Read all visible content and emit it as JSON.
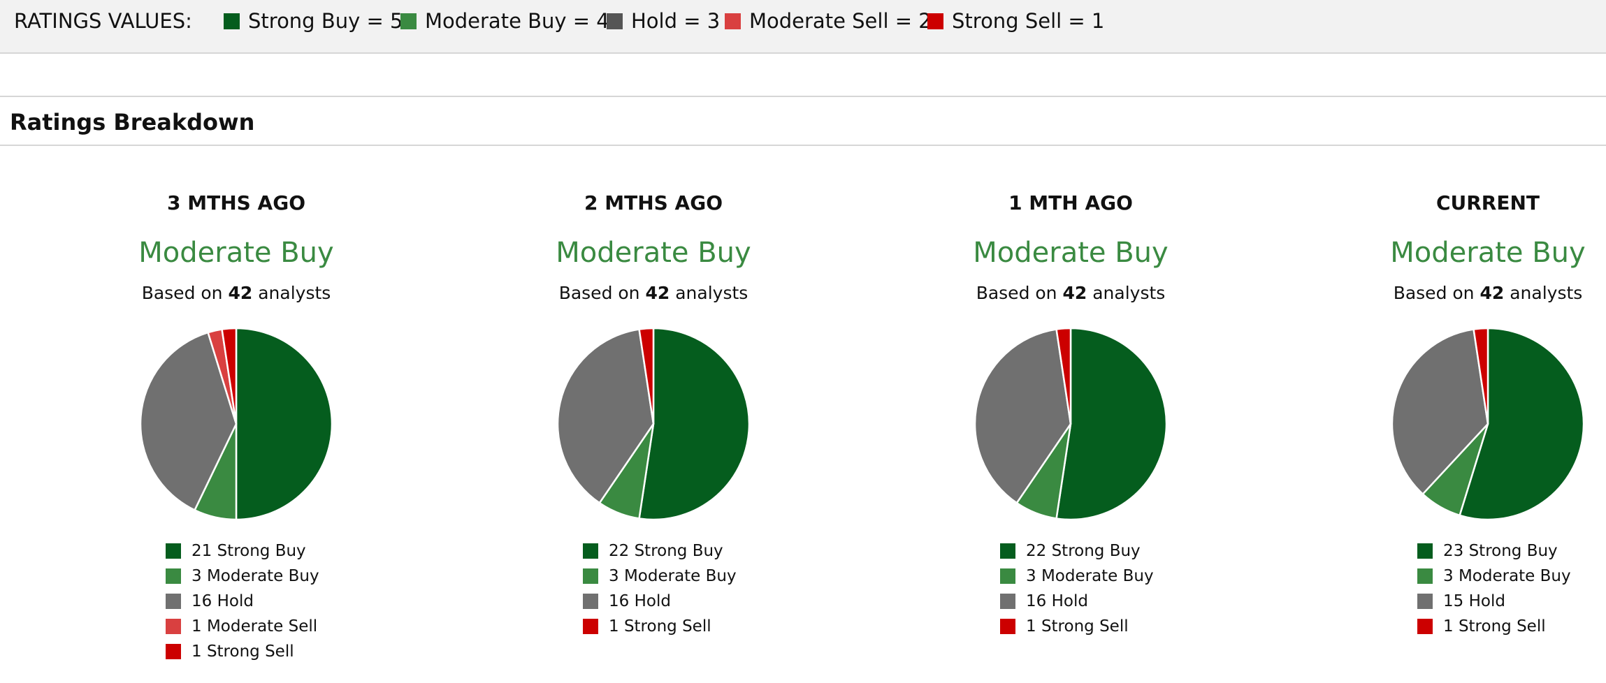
{
  "ratings_values": {
    "title": "RATINGS VALUES:",
    "items": [
      {
        "label": "Strong Buy = 5",
        "color": "#055d1e"
      },
      {
        "label": "Moderate Buy = 4",
        "color": "#3a8a41"
      },
      {
        "label": "Hold = 3",
        "color": "#555555"
      },
      {
        "label": "Moderate Sell = 2",
        "color": "#d94040"
      },
      {
        "label": "Strong Sell = 1",
        "color": "#cc0000"
      }
    ]
  },
  "section": {
    "title": "Ratings Breakdown"
  },
  "periods": [
    {
      "title": "3 MTHS AGO",
      "consensus": "Moderate Buy",
      "based_prefix": "Based on",
      "analysts": "42",
      "based_suffix": "analysts",
      "legend": [
        "21 Strong Buy",
        "3 Moderate Buy",
        "16 Hold",
        "1 Moderate Sell",
        "1 Strong Sell"
      ]
    },
    {
      "title": "2 MTHS AGO",
      "consensus": "Moderate Buy",
      "based_prefix": "Based on",
      "analysts": "42",
      "based_suffix": "analysts",
      "legend": [
        "22 Strong Buy",
        "3 Moderate Buy",
        "16 Hold",
        "1 Strong Sell"
      ]
    },
    {
      "title": "1 MTH AGO",
      "consensus": "Moderate Buy",
      "based_prefix": "Based on",
      "analysts": "42",
      "based_suffix": "analysts",
      "legend": [
        "22 Strong Buy",
        "3 Moderate Buy",
        "16 Hold",
        "1 Strong Sell"
      ]
    },
    {
      "title": "CURRENT",
      "consensus": "Moderate Buy",
      "based_prefix": "Based on",
      "analysts": "42",
      "based_suffix": "analysts",
      "legend": [
        "23 Strong Buy",
        "3 Moderate Buy",
        "15 Hold",
        "1 Strong Sell"
      ]
    }
  ],
  "chart_data": [
    {
      "type": "pie",
      "title": "3 MTHS AGO",
      "categories": [
        "Strong Buy",
        "Moderate Buy",
        "Hold",
        "Moderate Sell",
        "Strong Sell"
      ],
      "values": [
        21,
        3,
        16,
        1,
        1
      ],
      "colors": [
        "#055d1e",
        "#3a8a41",
        "#707070",
        "#d94040",
        "#cc0000"
      ]
    },
    {
      "type": "pie",
      "title": "2 MTHS AGO",
      "categories": [
        "Strong Buy",
        "Moderate Buy",
        "Hold",
        "Strong Sell"
      ],
      "values": [
        22,
        3,
        16,
        1
      ],
      "colors": [
        "#055d1e",
        "#3a8a41",
        "#707070",
        "#cc0000"
      ]
    },
    {
      "type": "pie",
      "title": "1 MTH AGO",
      "categories": [
        "Strong Buy",
        "Moderate Buy",
        "Hold",
        "Strong Sell"
      ],
      "values": [
        22,
        3,
        16,
        1
      ],
      "colors": [
        "#055d1e",
        "#3a8a41",
        "#707070",
        "#cc0000"
      ]
    },
    {
      "type": "pie",
      "title": "CURRENT",
      "categories": [
        "Strong Buy",
        "Moderate Buy",
        "Hold",
        "Strong Sell"
      ],
      "values": [
        23,
        3,
        15,
        1
      ],
      "colors": [
        "#055d1e",
        "#3a8a41",
        "#707070",
        "#cc0000"
      ]
    }
  ]
}
